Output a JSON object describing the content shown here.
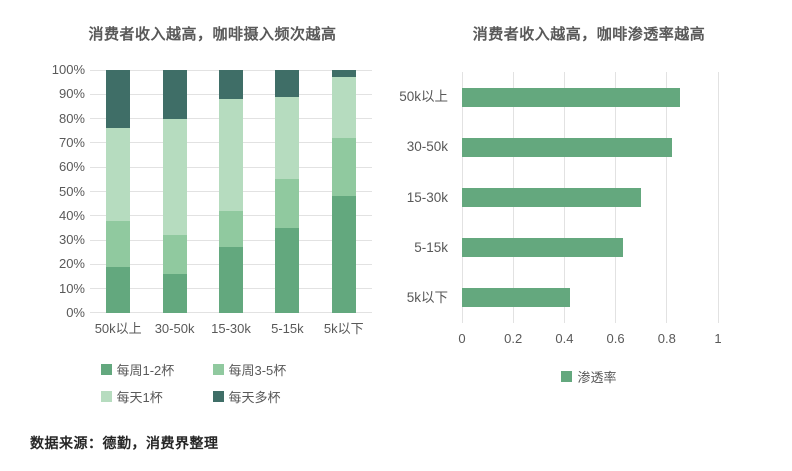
{
  "page": {
    "source_note": "数据来源：德勤，消费界整理"
  },
  "colors": {
    "grid": "#E2E2E2",
    "axis_text": "#595959",
    "title_text": "#595959",
    "source_text": "#262626"
  },
  "chart_data": [
    {
      "id": "coffee-frequency-by-income",
      "type": "bar",
      "stacked": true,
      "orientation": "vertical",
      "title": "消费者收入越高，咖啡摄入频次越高",
      "categories": [
        "50k以上",
        "30-50k",
        "15-30k",
        "5-15k",
        "5k以下"
      ],
      "series": [
        {
          "name": "每周1-2杯",
          "color": "#63A87E",
          "values": [
            19,
            16,
            27,
            35,
            48
          ]
        },
        {
          "name": "每周3-5杯",
          "color": "#90C99F",
          "values": [
            19,
            16,
            15,
            20,
            24
          ]
        },
        {
          "name": "每天1杯",
          "color": "#B6DCBF",
          "values": [
            38,
            48,
            46,
            34,
            25
          ]
        },
        {
          "name": "每天多杯",
          "color": "#3F6E67",
          "values": [
            24,
            20,
            12,
            11,
            3
          ]
        }
      ],
      "value_unit": "%",
      "ylim": [
        0,
        100
      ],
      "ytick_step": 10,
      "grid": true,
      "legend_position": "bottom"
    },
    {
      "id": "coffee-penetration-by-income",
      "type": "bar",
      "orientation": "horizontal",
      "title": "消费者收入越高，咖啡渗透率越高",
      "categories": [
        "50k以上",
        "30-50k",
        "15-30k",
        "5-15k",
        "5k以下"
      ],
      "series": [
        {
          "name": "渗透率",
          "color": "#64A87E",
          "values": [
            0.85,
            0.82,
            0.7,
            0.63,
            0.42
          ]
        }
      ],
      "xlim": [
        0,
        1
      ],
      "xticks": [
        0,
        0.2,
        0.4,
        0.6,
        0.8,
        1
      ],
      "xtick_labels": [
        "0",
        "0.2",
        "0.4",
        "0.6",
        "0.8",
        "1"
      ],
      "grid": true,
      "legend_position": "bottom"
    }
  ]
}
